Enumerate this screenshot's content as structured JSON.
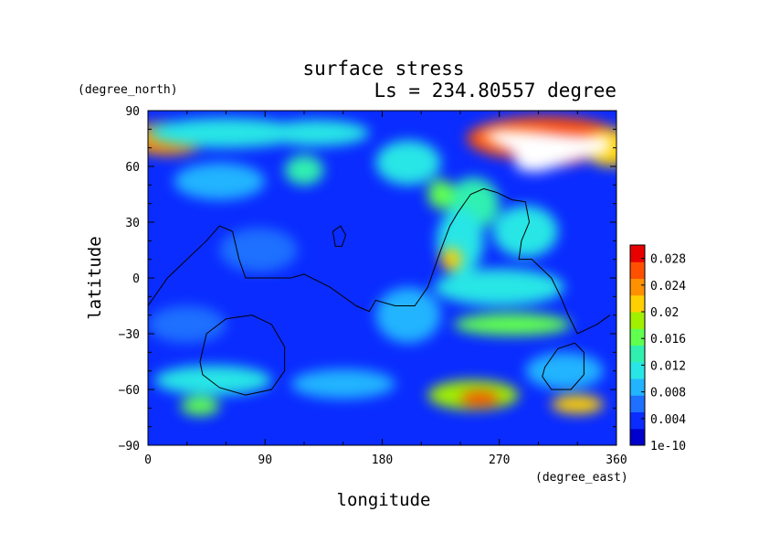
{
  "chart_data": {
    "type": "heatmap",
    "title": "surface stress",
    "subtitle": "Ls = 234.80557 degree",
    "xlabel": "longitude",
    "ylabel": "latitude",
    "x_units": "(degree_east)",
    "y_units": "(degree_north)",
    "xlim": [
      0,
      360
    ],
    "ylim": [
      -90,
      90
    ],
    "x_ticks": [
      0,
      90,
      180,
      270,
      360
    ],
    "y_ticks": [
      -90,
      -60,
      -30,
      0,
      30,
      60,
      90
    ],
    "colorbar": {
      "min": 0,
      "max": 0.03,
      "tick_values": [
        0,
        0.004,
        0.008,
        0.012,
        0.016,
        0.02,
        0.024,
        0.028
      ],
      "tick_labels": [
        "1e-10",
        "0.004",
        "0.008",
        "0.012",
        "0.016",
        "0.02",
        "0.024",
        "0.028"
      ],
      "colors": [
        "#0000cc",
        "#0a2cff",
        "#1e70ff",
        "#22b4ff",
        "#28e6e6",
        "#30f0b0",
        "#60ff50",
        "#a0f000",
        "#ffd000",
        "#ff9000",
        "#ff5000",
        "#e80000"
      ]
    },
    "background_value": 0.003,
    "field_features": [
      {
        "lon": 15,
        "lat": 75,
        "rlon": 30,
        "rlat": 9,
        "value": 0.024
      },
      {
        "lon": 60,
        "lat": 78,
        "rlon": 60,
        "rlat": 8,
        "value": 0.012
      },
      {
        "lon": 130,
        "lat": 78,
        "rlon": 40,
        "rlat": 7,
        "value": 0.011
      },
      {
        "lon": 55,
        "lat": 52,
        "rlon": 35,
        "rlat": 10,
        "value": 0.009
      },
      {
        "lon": 120,
        "lat": 58,
        "rlon": 15,
        "rlat": 8,
        "value": 0.014
      },
      {
        "lon": 200,
        "lat": 62,
        "rlon": 25,
        "rlat": 12,
        "value": 0.012
      },
      {
        "lon": 305,
        "lat": 75,
        "rlon": 60,
        "rlat": 12,
        "value": 0.026
      },
      {
        "lon": 310,
        "lat": 70,
        "rlon": 38,
        "rlat": 10,
        "value": 0.034
      },
      {
        "lon": 355,
        "lat": 70,
        "rlon": 20,
        "rlat": 10,
        "value": 0.022
      },
      {
        "lon": 250,
        "lat": 40,
        "rlon": 20,
        "rlat": 14,
        "value": 0.014
      },
      {
        "lon": 240,
        "lat": 20,
        "rlon": 18,
        "rlat": 18,
        "value": 0.012
      },
      {
        "lon": 290,
        "lat": 25,
        "rlon": 25,
        "rlat": 14,
        "value": 0.01
      },
      {
        "lon": 225,
        "lat": 45,
        "rlon": 10,
        "rlat": 8,
        "value": 0.015
      },
      {
        "lon": 233,
        "lat": 10,
        "rlon": 8,
        "rlat": 6,
        "value": 0.02
      },
      {
        "lon": 280,
        "lat": -25,
        "rlon": 45,
        "rlat": 6,
        "value": 0.016
      },
      {
        "lon": 270,
        "lat": -5,
        "rlon": 50,
        "rlat": 10,
        "value": 0.01
      },
      {
        "lon": 200,
        "lat": -20,
        "rlon": 25,
        "rlat": 15,
        "value": 0.008
      },
      {
        "lon": 85,
        "lat": 15,
        "rlon": 30,
        "rlat": 12,
        "value": 0.007
      },
      {
        "lon": 30,
        "lat": -25,
        "rlon": 30,
        "rlat": 10,
        "value": 0.006
      },
      {
        "lon": 250,
        "lat": -63,
        "rlon": 35,
        "rlat": 8,
        "value": 0.018
      },
      {
        "lon": 255,
        "lat": -65,
        "rlon": 15,
        "rlat": 4,
        "value": 0.025
      },
      {
        "lon": 330,
        "lat": -68,
        "rlon": 20,
        "rlat": 5,
        "value": 0.02
      },
      {
        "lon": 40,
        "lat": -69,
        "rlon": 15,
        "rlat": 5,
        "value": 0.016
      },
      {
        "lon": 50,
        "lat": -55,
        "rlon": 45,
        "rlat": 8,
        "value": 0.01
      },
      {
        "lon": 150,
        "lat": -57,
        "rlon": 40,
        "rlat": 8,
        "value": 0.009
      },
      {
        "lon": 320,
        "lat": -50,
        "rlon": 30,
        "rlat": 10,
        "value": 0.009
      }
    ],
    "saturated_region": {
      "value": "> 0.03",
      "color": "#ffffff",
      "outline": [
        [
          255,
          77
        ],
        [
          270,
          80
        ],
        [
          300,
          79
        ],
        [
          330,
          77
        ],
        [
          355,
          76
        ],
        [
          355,
          68
        ],
        [
          330,
          63
        ],
        [
          300,
          57
        ],
        [
          285,
          58
        ],
        [
          280,
          67
        ],
        [
          265,
          73
        ],
        [
          255,
          77
        ]
      ]
    },
    "contours": [
      [
        [
          0,
          -15
        ],
        [
          15,
          0
        ],
        [
          30,
          10
        ],
        [
          45,
          20
        ],
        [
          55,
          28
        ],
        [
          65,
          25
        ],
        [
          70,
          10
        ],
        [
          75,
          0
        ],
        [
          90,
          0
        ],
        [
          110,
          0
        ],
        [
          120,
          2
        ],
        [
          140,
          -5
        ],
        [
          160,
          -15
        ],
        [
          170,
          -18
        ],
        [
          175,
          -12
        ],
        [
          190,
          -15
        ],
        [
          205,
          -15
        ],
        [
          215,
          -5
        ],
        [
          225,
          15
        ],
        [
          232,
          28
        ],
        [
          238,
          35
        ],
        [
          248,
          45
        ],
        [
          258,
          48
        ],
        [
          268,
          46
        ],
        [
          280,
          42
        ],
        [
          290,
          41
        ],
        [
          293,
          30
        ],
        [
          287,
          20
        ],
        [
          285,
          10
        ],
        [
          295,
          10
        ],
        [
          310,
          0
        ],
        [
          317,
          -10
        ],
        [
          323,
          -20
        ],
        [
          330,
          -30
        ],
        [
          345,
          -25
        ],
        [
          355,
          -20
        ]
      ],
      [
        [
          142,
          25
        ],
        [
          148,
          28
        ],
        [
          152,
          23
        ],
        [
          149,
          17
        ],
        [
          144,
          17
        ],
        [
          142,
          25
        ]
      ],
      [
        [
          40,
          -45
        ],
        [
          45,
          -30
        ],
        [
          60,
          -22
        ],
        [
          80,
          -20
        ],
        [
          95,
          -25
        ],
        [
          105,
          -37
        ],
        [
          105,
          -50
        ],
        [
          95,
          -60
        ],
        [
          75,
          -63
        ],
        [
          55,
          -59
        ],
        [
          42,
          -52
        ],
        [
          40,
          -45
        ]
      ],
      [
        [
          305,
          -48
        ],
        [
          315,
          -38
        ],
        [
          328,
          -35
        ],
        [
          335,
          -40
        ],
        [
          335,
          -52
        ],
        [
          325,
          -60
        ],
        [
          310,
          -60
        ],
        [
          303,
          -53
        ],
        [
          305,
          -48
        ]
      ]
    ]
  }
}
